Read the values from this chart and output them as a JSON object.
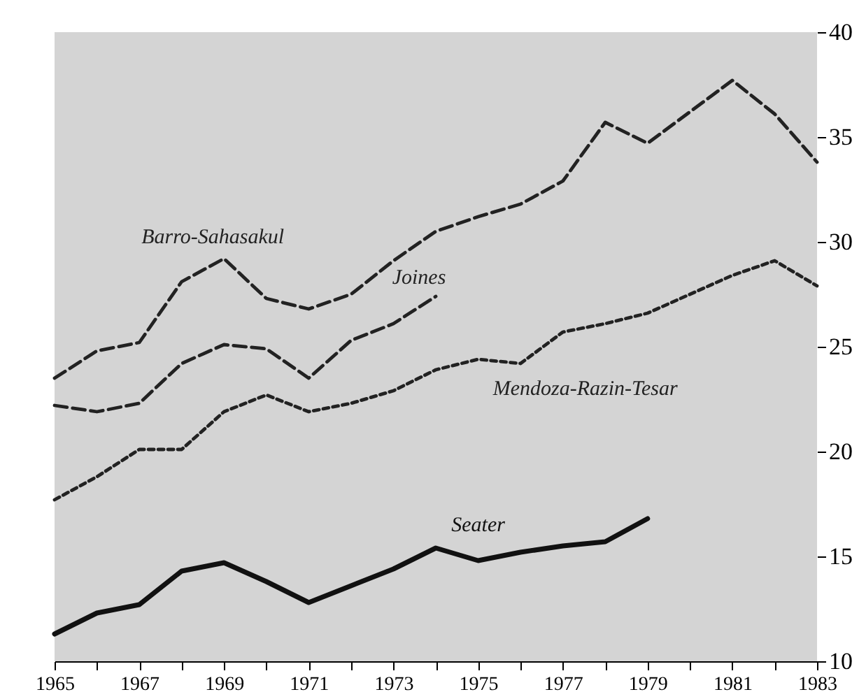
{
  "chart_data": {
    "type": "line",
    "x": [
      1965,
      1966,
      1967,
      1968,
      1969,
      1970,
      1971,
      1972,
      1973,
      1974,
      1975,
      1976,
      1977,
      1978,
      1979,
      1980,
      1981,
      1982,
      1983
    ],
    "series": [
      {
        "name": "Barro-Sahasakul",
        "color": "#222222",
        "line_style": "dashed",
        "values": [
          23.5,
          24.8,
          25.2,
          28.1,
          29.2,
          27.3,
          26.8,
          27.5,
          29.1,
          30.5,
          31.2,
          31.8,
          32.9,
          35.7,
          34.7,
          36.2,
          37.7,
          36.1,
          33.8
        ]
      },
      {
        "name": "Joines",
        "color": "#222222",
        "line_style": "dashed",
        "values": [
          22.2,
          21.9,
          22.3,
          24.2,
          25.1,
          24.9,
          23.5,
          25.3,
          26.1,
          27.4,
          null,
          null,
          null,
          null,
          null,
          null,
          null,
          null,
          null
        ]
      },
      {
        "name": "Mendoza-Razin-Tesar",
        "color": "#222222",
        "line_style": "dotted",
        "values": [
          17.7,
          18.8,
          20.1,
          20.1,
          21.9,
          22.7,
          21.9,
          22.3,
          22.9,
          23.9,
          24.4,
          24.2,
          25.7,
          26.1,
          26.6,
          27.5,
          28.4,
          29.1,
          27.9
        ]
      },
      {
        "name": "Seater",
        "color": "#111111",
        "line_style": "solid",
        "values": [
          11.3,
          12.3,
          12.7,
          14.3,
          14.7,
          13.8,
          12.8,
          13.6,
          14.4,
          15.4,
          14.8,
          15.2,
          15.5,
          15.7,
          16.8,
          null,
          null,
          null,
          null
        ]
      }
    ],
    "xlim": [
      1965,
      1983
    ],
    "xticks": [
      1965,
      {
        "value": 1966,
        "label": null
      },
      1967,
      {
        "value": 1968,
        "label": null
      },
      1969,
      {
        "value": 1970,
        "label": null
      },
      1971,
      {
        "value": 1972,
        "label": null
      },
      1973,
      {
        "value": 1974,
        "label": null
      },
      1975,
      {
        "value": 1976,
        "label": null
      },
      1977,
      {
        "value": 1978,
        "label": null
      },
      1979,
      {
        "value": 1980,
        "label": null
      },
      1981,
      {
        "value": 1982,
        "label": null
      },
      1983
    ],
    "ylim": [
      10,
      40
    ],
    "yticks": [
      10,
      15,
      20,
      25,
      30,
      35,
      40
    ],
    "legend": false,
    "grid": false,
    "marker": "none"
  }
}
